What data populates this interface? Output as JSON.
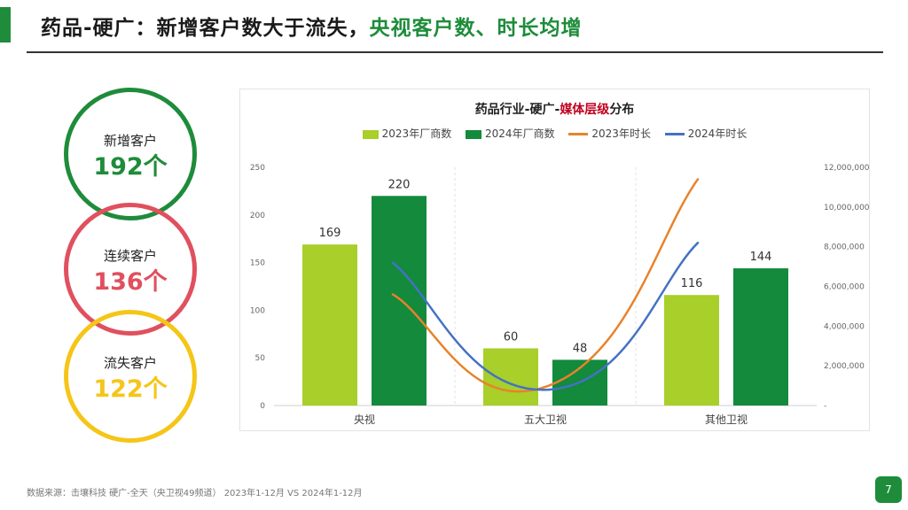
{
  "header": {
    "title_main": "药品-硬广：新增客户数大于流失，",
    "title_highlight": "央视客户数、时长均增"
  },
  "colors": {
    "accent": "#1e8c3a",
    "title_highlight": "#1e8c3a",
    "kpi_new": "#1e8c3a",
    "kpi_continue": "#e0505e",
    "kpi_lost": "#f5c518",
    "bar_2023": "#a8cf2a",
    "bar_2024": "#138a3c",
    "line_2023": "#e8822b",
    "line_2024": "#4472c4",
    "chart_title_highlight": "#c0001e"
  },
  "kpis": [
    {
      "label": "新增客户",
      "value": "192个",
      "color": "#1e8c3a"
    },
    {
      "label": "连续客户",
      "value": "136个",
      "color": "#e0505e"
    },
    {
      "label": "流失客户",
      "value": "122个",
      "color": "#f5c518"
    }
  ],
  "chart_data": {
    "type": "bar",
    "title_pre": "药品行业-硬广-",
    "title_highlight": "媒体层级",
    "title_post": "分布",
    "categories": [
      "央视",
      "五大卫视",
      "其他卫视"
    ],
    "series": [
      {
        "name": "2023年厂商数",
        "type": "bar",
        "axis": "left",
        "values": [
          169,
          60,
          116
        ],
        "color": "#a8cf2a"
      },
      {
        "name": "2024年厂商数",
        "type": "bar",
        "axis": "left",
        "values": [
          220,
          48,
          144
        ],
        "color": "#138a3c"
      },
      {
        "name": "2023年时长",
        "type": "line",
        "axis": "right",
        "values": [
          5600000,
          1000000,
          11400000
        ],
        "color": "#e8822b"
      },
      {
        "name": "2024年时长",
        "type": "line",
        "axis": "right",
        "values": [
          7200000,
          800000,
          8200000
        ],
        "color": "#4472c4"
      }
    ],
    "y_left": {
      "range": [
        0,
        250
      ],
      "ticks": [
        "0",
        "50",
        "100",
        "150",
        "200",
        "250"
      ]
    },
    "y_right": {
      "range": [
        0,
        12000000
      ],
      "ticks": [
        "-",
        "2,000,000",
        "4,000,000",
        "6,000,000",
        "8,000,000",
        "10,000,000",
        "12,000,000"
      ]
    },
    "data_labels": true,
    "legend_position": "top",
    "grid": false
  },
  "footer": {
    "source": "数据来源：击壤科技 硬广-全天（央卫视49频道） 2023年1-12月 VS 2024年1-12月",
    "page_number": "7"
  }
}
